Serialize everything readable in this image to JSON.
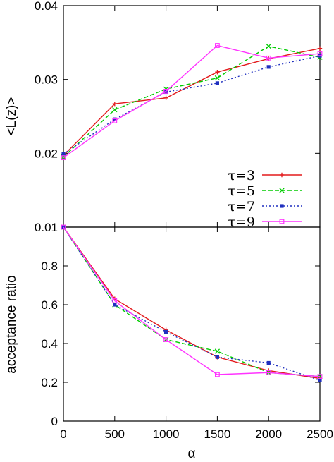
{
  "chart_data": [
    {
      "type": "line",
      "title": "",
      "xlabel": "",
      "ylabel": "<L(z)>",
      "xlim": [
        0,
        2500
      ],
      "ylim": [
        0.01,
        0.04
      ],
      "x": [
        0,
        500,
        1000,
        1500,
        2000,
        2500
      ],
      "xticks": [],
      "yticks": [
        "0.01",
        "0.02",
        "0.03",
        "0.04"
      ],
      "ytick_values": [
        0.01,
        0.02,
        0.03,
        0.04
      ],
      "legend": "right, lower part of panel",
      "series": [
        {
          "name": "τ=3",
          "color": "#e31a1c",
          "dash": "",
          "marker": "plus",
          "values": [
            0.0197,
            0.0267,
            0.0275,
            0.031,
            0.0328,
            0.0342
          ]
        },
        {
          "name": "τ=5",
          "color": "#00cc00",
          "dash": "6 3",
          "marker": "cross",
          "values": [
            0.0195,
            0.0259,
            0.0287,
            0.0302,
            0.0345,
            0.033
          ]
        },
        {
          "name": "τ=7",
          "color": "#1f2fbf",
          "dash": "2 3",
          "marker": "square-filled",
          "values": [
            0.0199,
            0.0246,
            0.0283,
            0.0295,
            0.0317,
            0.0332
          ]
        },
        {
          "name": "τ=9",
          "color": "#ff33ff",
          "dash": "",
          "marker": "square-open",
          "values": [
            0.0194,
            0.0244,
            0.0284,
            0.0346,
            0.0329,
            0.0335
          ]
        }
      ]
    },
    {
      "type": "line",
      "title": "",
      "xlabel": "α",
      "ylabel": "acceptance ratio",
      "xlim": [
        0,
        2500
      ],
      "ylim": [
        0,
        1
      ],
      "x": [
        0,
        500,
        1000,
        1500,
        2000,
        2500
      ],
      "xticks": [
        "0",
        "500",
        "1000",
        "1500",
        "2000",
        "2500"
      ],
      "xtick_values": [
        0,
        500,
        1000,
        1500,
        2000,
        2500
      ],
      "yticks": [
        "0",
        "0.2",
        "0.4",
        "0.6",
        "0.8"
      ],
      "ytick_values": [
        0,
        0.2,
        0.4,
        0.6,
        0.8
      ],
      "series": [
        {
          "name": "τ=3",
          "color": "#e31a1c",
          "dash": "",
          "marker": "plus",
          "values": [
            1.0,
            0.63,
            0.47,
            0.33,
            0.26,
            0.22
          ]
        },
        {
          "name": "τ=5",
          "color": "#00cc00",
          "dash": "6 3",
          "marker": "cross",
          "values": [
            1.0,
            0.6,
            0.42,
            0.36,
            0.25,
            0.23
          ]
        },
        {
          "name": "τ=7",
          "color": "#1f2fbf",
          "dash": "2 3",
          "marker": "square-filled",
          "values": [
            1.0,
            0.6,
            0.46,
            0.33,
            0.3,
            0.21
          ]
        },
        {
          "name": "τ=9",
          "color": "#ff33ff",
          "dash": "",
          "marker": "square-open",
          "values": [
            1.0,
            0.62,
            0.42,
            0.24,
            0.25,
            0.23
          ]
        }
      ]
    }
  ]
}
